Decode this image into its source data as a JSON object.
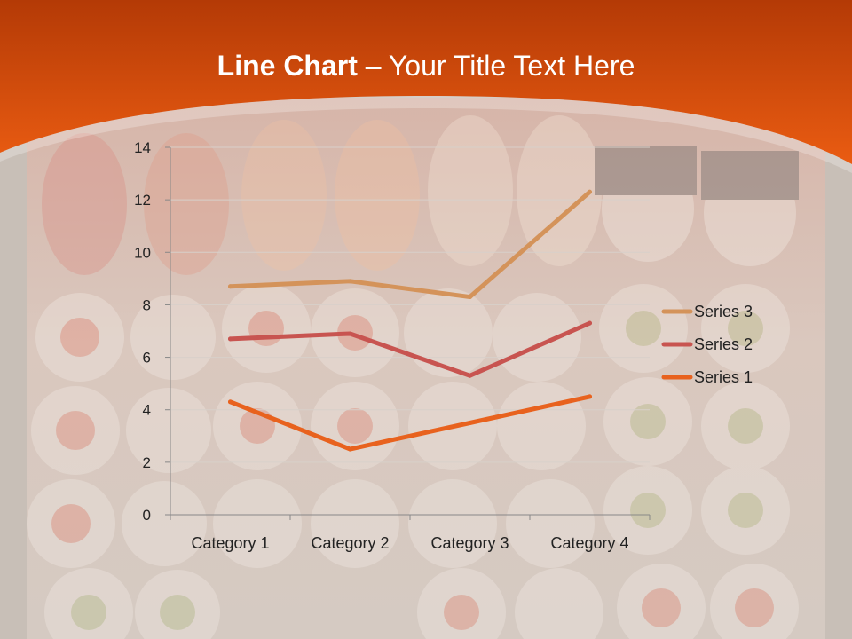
{
  "slide": {
    "title_bold": "Line Chart",
    "title_rest": " – Your Title Text Here"
  },
  "colors": {
    "header_top": "#b83c06",
    "header_bottom": "#e85a14",
    "background": "#c9bfb6"
  },
  "chart_data": {
    "type": "line",
    "categories": [
      "Category 1",
      "Category 2",
      "Category 3",
      "Category 4"
    ],
    "series": [
      {
        "name": "Series 1",
        "values": [
          4.3,
          2.5,
          3.5,
          4.5
        ],
        "color": "#e8621e"
      },
      {
        "name": "Series 2",
        "values": [
          6.7,
          6.9,
          5.3,
          7.3
        ],
        "color": "#c85450"
      },
      {
        "name": "Series 3",
        "values": [
          8.7,
          8.9,
          8.3,
          12.3
        ],
        "color": "#d4935a"
      }
    ],
    "ylim": [
      0,
      14
    ],
    "yticks": [
      0,
      2,
      4,
      6,
      8,
      10,
      12,
      14
    ],
    "grid": true,
    "legend_position": "right",
    "legend_order": [
      "Series 3",
      "Series 2",
      "Series 1"
    ]
  }
}
